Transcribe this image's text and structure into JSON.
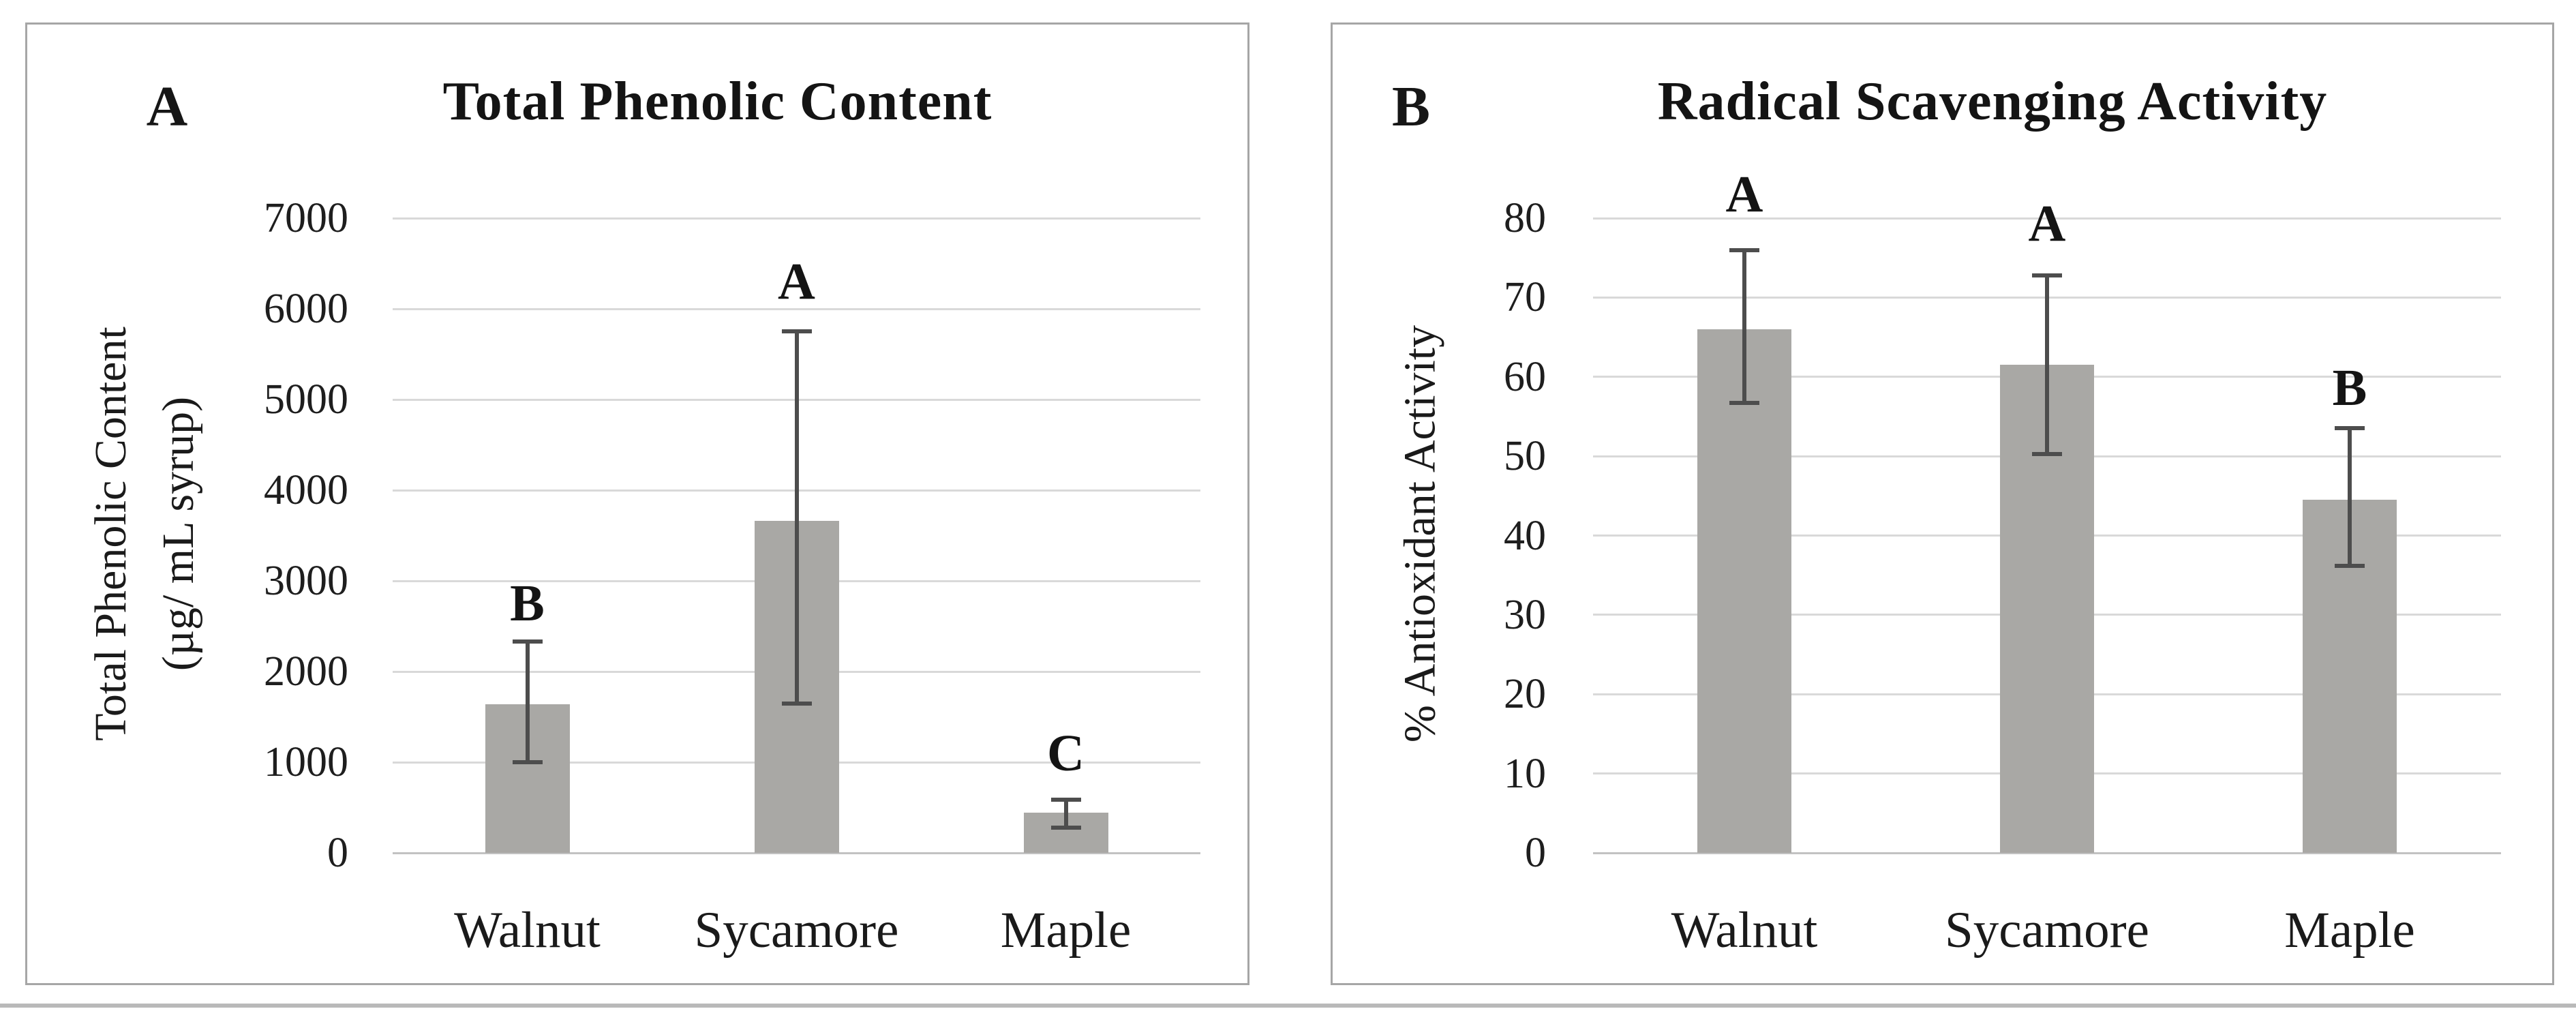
{
  "figure_type": "two-panel bar chart figure",
  "colors": {
    "bar_fill": "#a9a8a5",
    "error_bar": "#4d4d4d",
    "gridline": "#d9d9d9",
    "axis_line": "#c2c2c2",
    "panel_border": "#a6a6a6",
    "text": "#1c1c1c",
    "background": "#ffffff"
  },
  "chart_data": [
    {
      "type": "bar",
      "panel_label": "A",
      "title": "Total Phenolic Content",
      "ylabel": "Total Phenolic Content (µg/ mL syrup)",
      "ylabel_lines": [
        "Total Phenolic Content",
        "(µg/ mL syrup)"
      ],
      "xlabel": "",
      "categories": [
        "Walnut",
        "Sycamore",
        "Maple"
      ],
      "values": [
        1640,
        3660,
        440
      ],
      "error_bars": {
        "upper": [
          2330,
          5750,
          590
        ],
        "lower": [
          1000,
          1650,
          280
        ]
      },
      "significance_letters": [
        "B",
        "A",
        "C"
      ],
      "letter_y_values": [
        2750,
        6300,
        1100
      ],
      "ylim": [
        0,
        7000
      ],
      "yticks": [
        0,
        1000,
        2000,
        3000,
        4000,
        5000,
        6000,
        7000
      ],
      "grid": true,
      "legend": "none"
    },
    {
      "type": "bar",
      "panel_label": "B",
      "title": "Radical Scavenging Activity",
      "ylabel": "% Antioxidant Activity",
      "ylabel_lines": [
        "% Antioxidant Activity"
      ],
      "xlabel": "",
      "categories": [
        "Walnut",
        "Sycamore",
        "Maple"
      ],
      "values": [
        66,
        61.5,
        44.5
      ],
      "error_bars": {
        "upper": [
          76,
          72.8,
          53.5
        ],
        "lower": [
          56.7,
          50.3,
          36.2
        ]
      },
      "significance_letters": [
        "A",
        "A",
        "B"
      ],
      "letter_y_values": [
        83,
        79.3,
        58.6
      ],
      "ylim": [
        0,
        80
      ],
      "yticks": [
        0,
        10,
        20,
        30,
        40,
        50,
        60,
        70,
        80
      ],
      "grid": true,
      "legend": "none"
    }
  ]
}
